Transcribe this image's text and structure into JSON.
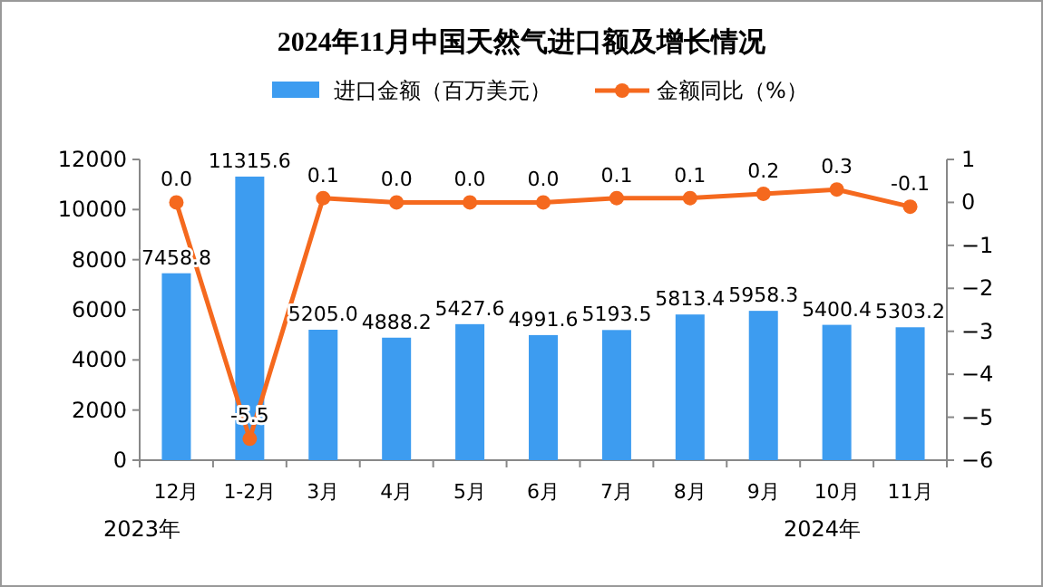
{
  "chart_data": {
    "type": "bar",
    "title": "2024年11月中国天然气进口额及增长情况",
    "categories": [
      "12月",
      "1-2月",
      "3月",
      "4月",
      "5月",
      "6月",
      "7月",
      "8月",
      "9月",
      "10月",
      "11月"
    ],
    "series": [
      {
        "name": "进口金额（百万美元）",
        "color": "#3d9cf0",
        "values": [
          7458.8,
          11315.6,
          5205.0,
          4888.2,
          5427.6,
          4991.6,
          5193.5,
          5813.4,
          5958.3,
          5400.4,
          5303.2
        ],
        "value_labels": [
          "7458.8",
          "11315.6",
          "5205.0",
          "4888.2",
          "5427.6",
          "4991.6",
          "5193.5",
          "5813.4",
          "5958.3",
          "5400.4",
          "5303.2"
        ]
      },
      {
        "name": "金额同比（%）",
        "type": "line",
        "axis": "y2",
        "color": "#f5691e",
        "marker": "circle",
        "values": [
          0.0,
          -5.5,
          0.1,
          0.0,
          0.0,
          0.0,
          0.1,
          0.1,
          0.2,
          0.3,
          -0.1
        ],
        "value_labels": [
          "0.0",
          "-5.5",
          "0.1",
          "0.0",
          "0.0",
          "0.0",
          "0.1",
          "0.1",
          "0.2",
          "0.3",
          "-0.1"
        ]
      }
    ],
    "ylim": [
      0,
      12000
    ],
    "yticks": [
      0,
      2000,
      4000,
      6000,
      8000,
      10000,
      12000
    ],
    "y2lim": [
      -6,
      1
    ],
    "y2ticks": [
      -6,
      -5,
      -4,
      -3,
      -2,
      -1,
      0,
      1
    ],
    "legend": "top",
    "grid": false,
    "annotations": [
      "2023年",
      "2024年"
    ]
  }
}
